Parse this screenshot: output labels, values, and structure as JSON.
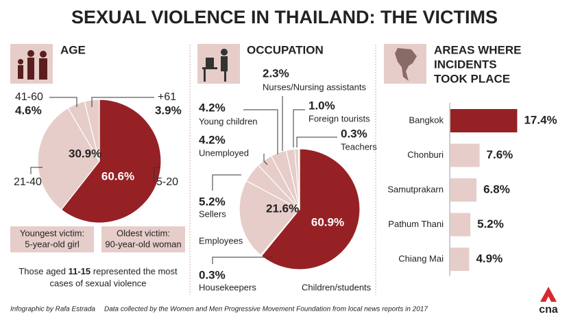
{
  "title": "SEXUAL VIOLENCE IN THAILAND: THE VICTIMS",
  "chart_data": [
    {
      "type": "pie",
      "title": "AGE",
      "categories": [
        "5-20",
        "21-40",
        "41-60",
        "+61"
      ],
      "values": [
        60.6,
        30.9,
        4.6,
        3.9
      ],
      "value_labels": [
        "60.6%",
        "30.9%",
        "4.6%",
        "3.9%"
      ],
      "colors": [
        "#962125",
        "#e6cdc9",
        "#e6cdc9",
        "#e6cdc9"
      ]
    },
    {
      "type": "pie",
      "title": "OCCUPATION",
      "categories": [
        "Children/students",
        "Housekeepers",
        "Employees",
        "Sellers",
        "Unemployed",
        "Young children",
        "Nurses/Nursing assistants",
        "Foreign tourists",
        "Teachers"
      ],
      "values": [
        60.9,
        0.3,
        21.6,
        5.2,
        4.2,
        4.2,
        2.3,
        1.0,
        0.3
      ],
      "value_labels": [
        "60.9%",
        "0.3%",
        "21.6%",
        "5.2%",
        "4.2%",
        "4.2%",
        "2.3%",
        "1.0%",
        "0.3%"
      ],
      "colors": [
        "#962125",
        "#e6cdc9",
        "#e6cdc9",
        "#e6cdc9",
        "#e6cdc9",
        "#e6cdc9",
        "#e6cdc9",
        "#e6cdc9",
        "#e6cdc9"
      ]
    },
    {
      "type": "bar",
      "orientation": "horizontal",
      "title": [
        "AREAS WHERE",
        "INCIDENTS",
        "TOOK PLACE"
      ],
      "categories": [
        "Bangkok",
        "Chonburi",
        "Samutprakarn",
        "Pathum Thani",
        "Chiang Mai"
      ],
      "values": [
        17.4,
        7.6,
        6.8,
        5.2,
        4.9
      ],
      "value_labels": [
        "17.4%",
        "7.6%",
        "6.8%",
        "5.2%",
        "4.9%"
      ],
      "colors": [
        "#962125",
        "#e6cdc9",
        "#e6cdc9",
        "#e6cdc9",
        "#e6cdc9"
      ]
    }
  ],
  "victims": {
    "youngest": [
      "Youngest victim:",
      "5-year-old girl"
    ],
    "oldest": [
      "Oldest victim:",
      "90-year-old woman"
    ]
  },
  "summary": [
    "Those aged",
    "11-15",
    "represented the most",
    "cases of sexual violence"
  ],
  "footer": {
    "credit": "Infographic by Rafa Estrada",
    "source": "Data collected by the Women and Men Progressive Movement Foundation from local news reports in 2017",
    "logo": "cna"
  }
}
